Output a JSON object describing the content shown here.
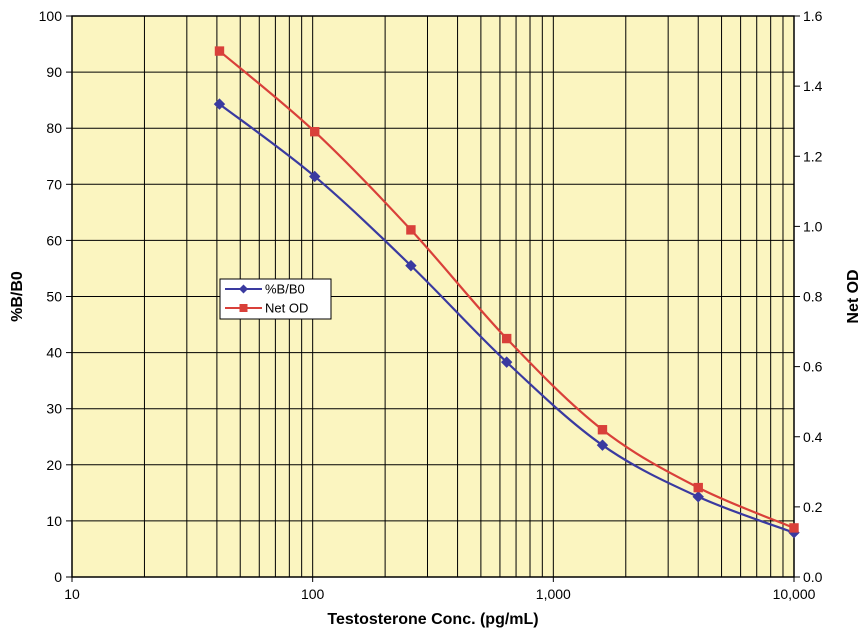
{
  "chart_data": {
    "type": "line",
    "x_scale": "log",
    "x": [
      41,
      102,
      256,
      640,
      1600,
      4000,
      10000
    ],
    "xlabel": "Testosterone Conc. (pg/mL)",
    "x_ticks": [
      10,
      100,
      1000,
      10000
    ],
    "x_tick_labels": [
      "10",
      "100",
      "1,000",
      "10,000"
    ],
    "xlim": [
      10,
      10000
    ],
    "ylabel": "%B/B0",
    "y_ticks": [
      0,
      10,
      20,
      30,
      40,
      50,
      60,
      70,
      80,
      90,
      100
    ],
    "y_tick_labels": [
      "0",
      "10",
      "20",
      "30",
      "40",
      "50",
      "60",
      "70",
      "80",
      "90",
      "100"
    ],
    "ylim": [
      0,
      100
    ],
    "y2label": "Net OD",
    "y2_ticks": [
      0,
      0.2,
      0.4,
      0.6,
      0.8,
      1.0,
      1.2,
      1.4,
      1.6
    ],
    "y2_tick_labels": [
      "0.0",
      "0.2",
      "0.4",
      "0.6",
      "0.8",
      "1.0",
      "1.2",
      "1.4",
      "1.6"
    ],
    "y2lim": [
      0,
      1.6
    ],
    "grid": true,
    "legend_position": "middle-left",
    "plot_background": "#fbf5c0",
    "series": [
      {
        "name": "%B/B0",
        "axis": "left",
        "marker": "diamond",
        "color": "#3a3aa0",
        "values": [
          84.3,
          71.4,
          55.5,
          38.3,
          23.5,
          14.3,
          7.9
        ]
      },
      {
        "name": "Net OD",
        "axis": "right",
        "marker": "square",
        "color": "#d9403a",
        "values": [
          1.5,
          1.27,
          0.99,
          0.68,
          0.42,
          0.255,
          0.14
        ]
      }
    ]
  }
}
